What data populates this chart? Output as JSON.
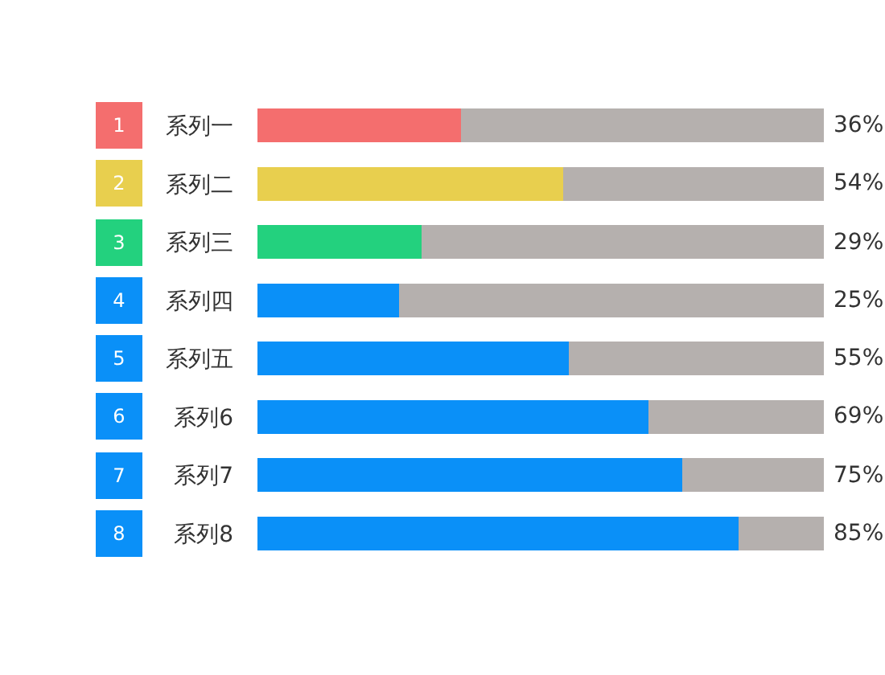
{
  "chart_data": {
    "type": "bar",
    "orientation": "horizontal",
    "stacked": true,
    "categories": [
      "系列一",
      "系列二",
      "系列三",
      "系列四",
      "系列五",
      "系列6",
      "系列7",
      "系列8"
    ],
    "series": [
      {
        "colors": [
          "#f46e6e",
          "#e8cf4e",
          "#23d17e",
          "#0a90f8",
          "#0a90f8",
          "#0a90f8",
          "#0a90f8",
          "#0a90f8"
        ],
        "values": [
          36,
          54,
          29,
          25,
          55,
          69,
          75,
          85
        ],
        "value_labels": [
          "36%",
          "54%",
          "29%",
          "25%",
          "55%",
          "69%",
          "75%",
          "85%"
        ]
      },
      {
        "color": "#b5b0ae",
        "values": [
          64,
          46,
          71,
          75,
          45,
          31,
          25,
          15
        ]
      }
    ],
    "annotations": [
      "1",
      "2",
      "3",
      "4",
      "5",
      "6",
      "7",
      "8"
    ],
    "xlim": [
      0,
      100
    ],
    "tick_labels": "y",
    "grid": false
  }
}
